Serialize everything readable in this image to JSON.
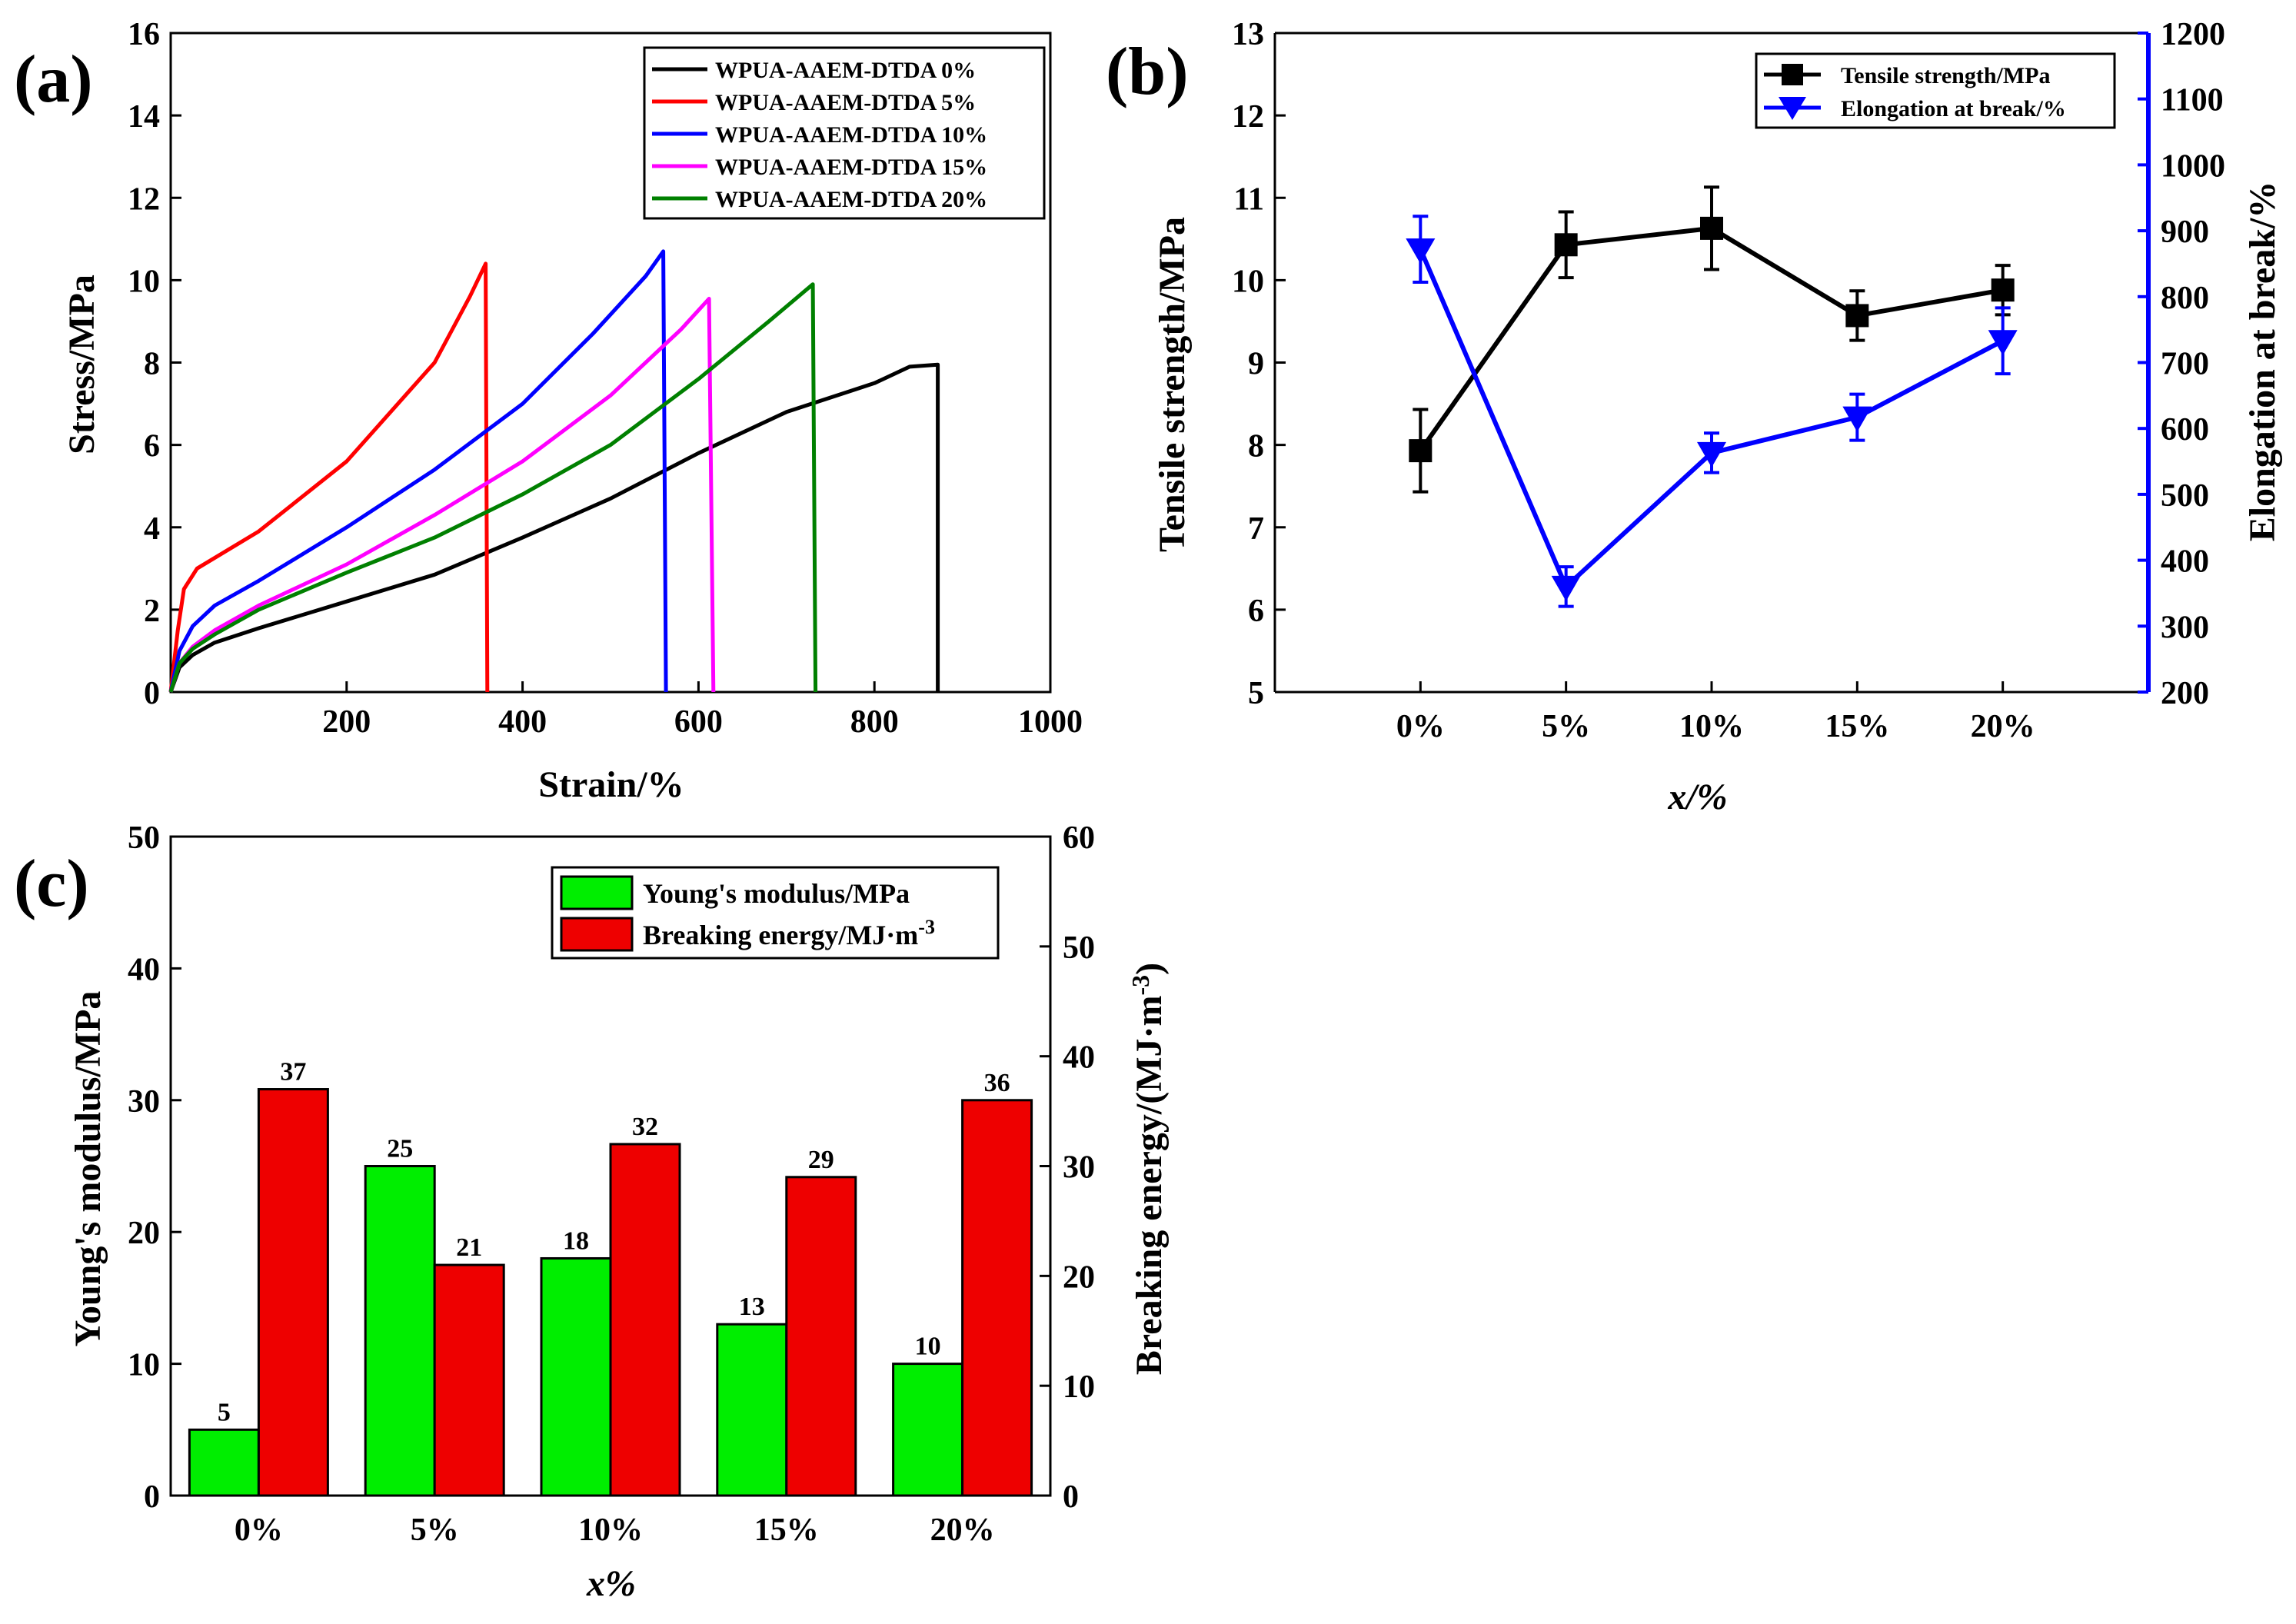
{
  "chart_data": [
    {
      "panel": "(a)",
      "type": "line",
      "xlabel": "Strain/%",
      "ylabel": "Stress/MPa",
      "xlim": [
        0,
        1000
      ],
      "ylim": [
        0,
        16
      ],
      "xticks": [
        200,
        400,
        600,
        800,
        1000
      ],
      "yticks": [
        0,
        2,
        4,
        6,
        8,
        10,
        12,
        14,
        16
      ],
      "legend_position": "top-right",
      "series": [
        {
          "name": "WPUA-AAEM-DTDA 0%",
          "color": "#000000",
          "points": [
            [
              0,
              0
            ],
            [
              10,
              0.6
            ],
            [
              25,
              0.9
            ],
            [
              50,
              1.2
            ],
            [
              100,
              1.55
            ],
            [
              200,
              2.2
            ],
            [
              300,
              2.85
            ],
            [
              400,
              3.75
            ],
            [
              500,
              4.7
            ],
            [
              600,
              5.8
            ],
            [
              700,
              6.8
            ],
            [
              800,
              7.5
            ],
            [
              840,
              7.9
            ],
            [
              872,
              7.95
            ],
            [
              872,
              0
            ]
          ]
        },
        {
          "name": "WPUA-AAEM-DTDA 5%",
          "color": "#ff0000",
          "points": [
            [
              0,
              0
            ],
            [
              8,
              1.5
            ],
            [
              15,
              2.5
            ],
            [
              30,
              3.0
            ],
            [
              100,
              3.9
            ],
            [
              200,
              5.6
            ],
            [
              300,
              8.0
            ],
            [
              340,
              9.6
            ],
            [
              358,
              10.4
            ],
            [
              360,
              0
            ]
          ]
        },
        {
          "name": "WPUA-AAEM-DTDA 10%",
          "color": "#0000ff",
          "points": [
            [
              0,
              0
            ],
            [
              10,
              1.0
            ],
            [
              25,
              1.6
            ],
            [
              50,
              2.1
            ],
            [
              100,
              2.7
            ],
            [
              200,
              4.0
            ],
            [
              300,
              5.4
            ],
            [
              400,
              7.0
            ],
            [
              480,
              8.7
            ],
            [
              540,
              10.1
            ],
            [
              560,
              10.7
            ],
            [
              563,
              0
            ]
          ]
        },
        {
          "name": "WPUA-AAEM-DTDA 15%",
          "color": "#ff00ff",
          "points": [
            [
              0,
              0
            ],
            [
              10,
              0.7
            ],
            [
              25,
              1.1
            ],
            [
              50,
              1.5
            ],
            [
              100,
              2.1
            ],
            [
              200,
              3.1
            ],
            [
              300,
              4.3
            ],
            [
              400,
              5.6
            ],
            [
              500,
              7.2
            ],
            [
              580,
              8.8
            ],
            [
              612,
              9.55
            ],
            [
              617,
              0
            ]
          ]
        },
        {
          "name": "WPUA-AAEM-DTDA 20%",
          "color": "#008000",
          "points": [
            [
              0,
              0
            ],
            [
              10,
              0.7
            ],
            [
              25,
              1.05
            ],
            [
              50,
              1.4
            ],
            [
              100,
              2.0
            ],
            [
              200,
              2.9
            ],
            [
              300,
              3.75
            ],
            [
              400,
              4.8
            ],
            [
              500,
              6.0
            ],
            [
              600,
              7.6
            ],
            [
              680,
              9.0
            ],
            [
              730,
              9.9
            ],
            [
              733,
              0
            ]
          ]
        }
      ]
    },
    {
      "panel": "(b)",
      "type": "line",
      "xlabel": "x/%",
      "ylabel": "Tensile strength/MPa",
      "y2label": "Elongation at break/%",
      "categories": [
        "0%",
        "5%",
        "10%",
        "15%",
        "20%"
      ],
      "ylim": [
        5,
        13
      ],
      "y2lim": [
        200,
        1200
      ],
      "yticks": [
        5,
        6,
        7,
        8,
        9,
        10,
        11,
        12,
        13
      ],
      "y2ticks": [
        200,
        300,
        400,
        500,
        600,
        700,
        800,
        900,
        1000,
        1100,
        1200
      ],
      "legend_position": "top-right",
      "series": [
        {
          "name": "Tensile strength/MPa",
          "axis": "left",
          "color": "#000000",
          "marker": "square",
          "values": [
            7.93,
            10.43,
            10.63,
            9.57,
            9.88
          ],
          "errors": [
            0.5,
            0.4,
            0.5,
            0.3,
            0.3
          ]
        },
        {
          "name": "Elongation at break/%",
          "axis": "right",
          "color": "#0000ff",
          "marker": "triangle-down",
          "values": [
            872,
            360,
            563,
            617,
            733
          ],
          "errors": [
            50,
            30,
            30,
            35,
            50
          ]
        }
      ]
    },
    {
      "panel": "(c)",
      "type": "bar",
      "xlabel": "x%",
      "ylabel": "Young's modulus/MPa",
      "y2label": "Breaking energy/(MJ·m",
      "y2label_sup": "-3",
      "y2label_end": ")",
      "categories": [
        "0%",
        "5%",
        "10%",
        "15%",
        "20%"
      ],
      "ylim": [
        0,
        50
      ],
      "y2lim": [
        0,
        60
      ],
      "yticks": [
        0,
        10,
        20,
        30,
        40,
        50
      ],
      "y2ticks": [
        0,
        10,
        20,
        30,
        40,
        50,
        60
      ],
      "legend_position": "top-right",
      "series": [
        {
          "name": "Young's modulus/MPa",
          "axis": "left",
          "color": "#00ee00",
          "values": [
            5,
            25,
            18,
            13,
            10
          ]
        },
        {
          "name": "Breaking energy/MJ·m",
          "name_sup": "-3",
          "axis": "right",
          "color": "#ee0000",
          "values": [
            37,
            21,
            32,
            29,
            36
          ]
        }
      ]
    }
  ]
}
